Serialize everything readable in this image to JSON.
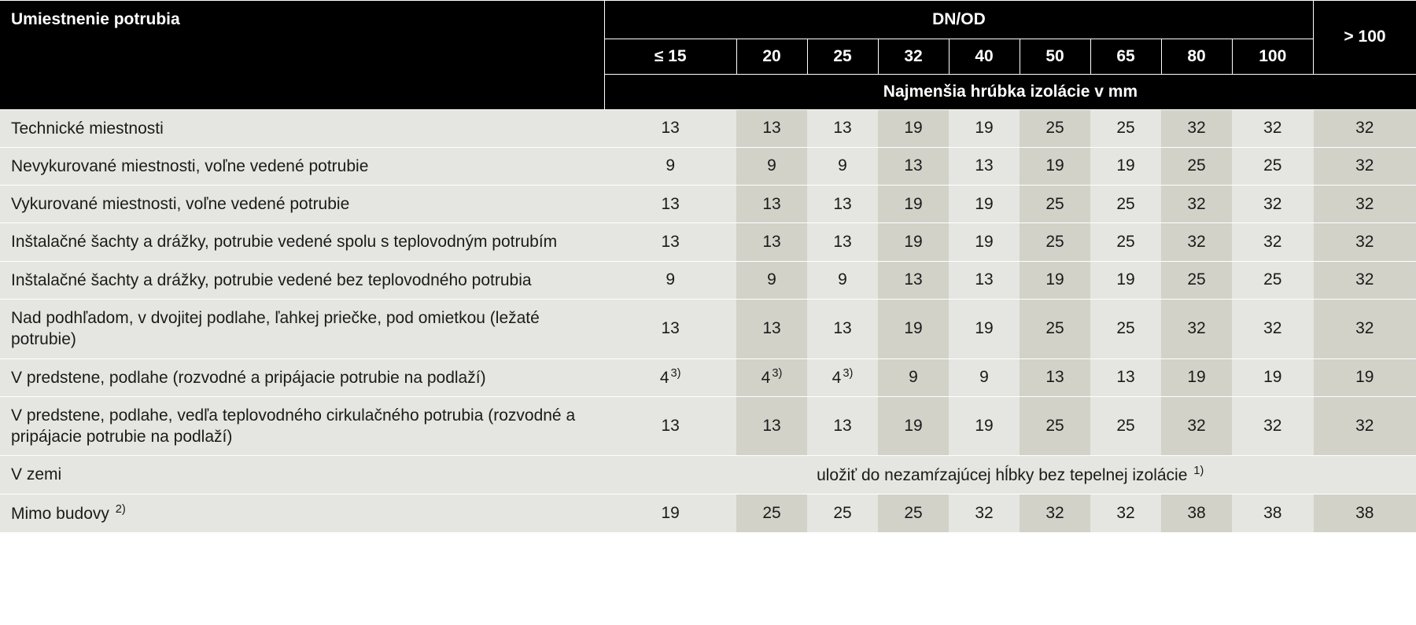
{
  "headers": {
    "main_left": "Umiestnenie potrubia",
    "dnod": "DN/OD",
    "sub": "Najmenšia hrúbka izolácie v mm",
    "cols": [
      "≤ 15",
      "20",
      "25",
      "32",
      "40",
      "50",
      "65",
      "80",
      "100",
      "> 100"
    ]
  },
  "rows": [
    {
      "label": "Technické miestnosti",
      "values": [
        "13",
        "13",
        "13",
        "19",
        "19",
        "25",
        "25",
        "32",
        "32",
        "32"
      ]
    },
    {
      "label": "Nevykurované miestnosti, voľne vedené potrubie",
      "values": [
        "9",
        "9",
        "9",
        "13",
        "13",
        "19",
        "19",
        "25",
        "25",
        "32"
      ]
    },
    {
      "label": "Vykurované miestnosti, voľne vedené potrubie",
      "values": [
        "13",
        "13",
        "13",
        "19",
        "19",
        "25",
        "25",
        "32",
        "32",
        "32"
      ]
    },
    {
      "label": "Inštalačné šachty a drážky, potrubie vedené spolu s teplovodným potrubím",
      "values": [
        "13",
        "13",
        "13",
        "19",
        "19",
        "25",
        "25",
        "32",
        "32",
        "32"
      ]
    },
    {
      "label": "Inštalačné šachty a drážky, potrubie vedené bez teplovodného potrubia",
      "values": [
        "9",
        "9",
        "9",
        "13",
        "13",
        "19",
        "19",
        "25",
        "25",
        "32"
      ]
    },
    {
      "label": "Nad podhľadom, v dvojitej podlahe, ľahkej priečke, pod omietkou (ležaté potrubie)",
      "values": [
        "13",
        "13",
        "13",
        "19",
        "19",
        "25",
        "25",
        "32",
        "32",
        "32"
      ]
    },
    {
      "label": "V predstene, podlahe (rozvodné a pripájacie potrubie na podlaží)",
      "values_with_sup": [
        {
          "v": "4",
          "sup": "3)"
        },
        {
          "v": "4",
          "sup": "3)"
        },
        {
          "v": "4",
          "sup": "3)"
        },
        {
          "v": "9"
        },
        {
          "v": "9"
        },
        {
          "v": "13"
        },
        {
          "v": "13"
        },
        {
          "v": "19"
        },
        {
          "v": "19"
        },
        {
          "v": "19"
        }
      ]
    },
    {
      "label": "V predstene, podlahe, vedľa teplovodného cirkulačného potrubia (rozvodné a pripájacie potrubie na podlaží)",
      "values": [
        "13",
        "13",
        "13",
        "19",
        "19",
        "25",
        "25",
        "32",
        "32",
        "32"
      ]
    },
    {
      "label": "V zemi",
      "spanning_note": {
        "text": "uložiť do nezamŕzajúcej hĺbky bez tepelnej izolácie ",
        "sup": "1)"
      }
    },
    {
      "label_with_sup": {
        "text": "Mimo budovy ",
        "sup": "2)"
      },
      "values": [
        "19",
        "25",
        "25",
        "25",
        "32",
        "32",
        "32",
        "38",
        "38",
        "38"
      ]
    }
  ],
  "col_shades": [
    "c-light",
    "c-dark",
    "c-light",
    "c-dark",
    "c-light",
    "c-dark",
    "c-light",
    "c-dark",
    "c-light",
    "c-dark"
  ]
}
